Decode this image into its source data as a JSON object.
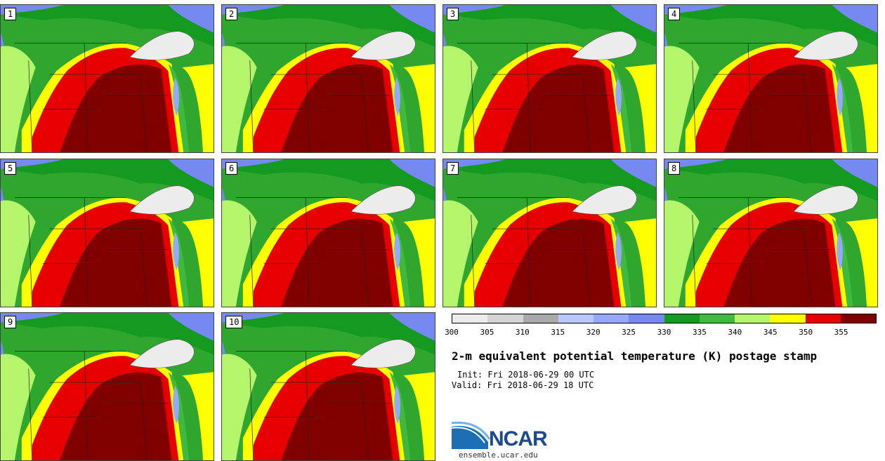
{
  "panels": [
    {
      "label": "1"
    },
    {
      "label": "2"
    },
    {
      "label": "3"
    },
    {
      "label": "4"
    },
    {
      "label": "5"
    },
    {
      "label": "6"
    },
    {
      "label": "7"
    },
    {
      "label": "8"
    },
    {
      "label": "9"
    },
    {
      "label": "10"
    }
  ],
  "legend": {
    "colors": [
      "#ececec",
      "#d4d4d4",
      "#a9a9a9",
      "#b8c8ff",
      "#95a9fa",
      "#7689f0",
      "#139a1f",
      "#3fb93f",
      "#b5f56b",
      "#ffff00",
      "#e60000",
      "#800000"
    ],
    "ticks": [
      "300",
      "305",
      "310",
      "315",
      "320",
      "325",
      "330",
      "335",
      "340",
      "345",
      "350",
      "355"
    ]
  },
  "title": "2-m equivalent potential temperature (K) postage stamp",
  "init": "Init: Fri 2018-06-29 00 UTC",
  "valid": "Valid: Fri 2018-06-29 18 UTC",
  "logo": {
    "text": "NCAR",
    "site": "ensemble.ucar.edu"
  }
}
